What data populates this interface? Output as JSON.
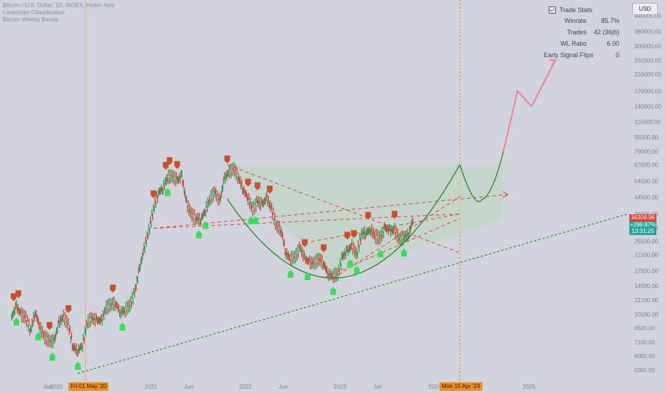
{
  "header": {
    "title": "Bitcoin / U.S. Dollar, 1D, INDEX, Heikin Ashi",
    "indicator1": "Lorentzian Classification",
    "indicator2": "Bitcoin Weekly Bands"
  },
  "currency_button": "USD",
  "trade_stats": {
    "title": "Trade Stats",
    "rows": [
      {
        "label": "Winrate",
        "value": "85.7%"
      },
      {
        "label": "Trades",
        "value": "42 (36|6)"
      },
      {
        "label": "WL Ratio",
        "value": "6.00"
      },
      {
        "label": "Early Signal Flips",
        "value": "0"
      }
    ]
  },
  "price_tags": {
    "last_price": "34309.96",
    "change": "+299.87%",
    "countdown": "13:31:25"
  },
  "x_highlights": {
    "left": "Fri 01 May '20",
    "right": "Mon 15 Apr '24"
  },
  "colors": {
    "background": "#d1d4dc",
    "bull_candle": "#2e9e5b",
    "bear_candle": "#e0413a",
    "sell_signal": "#c9502b",
    "buy_signal": "#3ddc5a",
    "curve": "#2d8a2d",
    "dashed_lines": "#e0413a",
    "projection": "#f08090",
    "support_line": "#3a9a2a",
    "highlight": "#f28c1b"
  },
  "chart_data": {
    "type": "line",
    "title": "Bitcoin / U.S. Dollar, 1D, INDEX, Heikin Ashi",
    "y_scale": "log",
    "ylim": [
      4500,
      480000
    ],
    "y_ticks": [
      5000,
      6000,
      7100,
      8500,
      10100,
      12100,
      14500,
      17500,
      21500,
      25500,
      30000,
      36000,
      44500,
      54500,
      67000,
      79000,
      95000,
      115000,
      140000,
      170000,
      210000,
      250000,
      300000,
      360000,
      440000
    ],
    "y_tick_labels": [
      "5000.00",
      "6000.00",
      "7100.00",
      "8500.00",
      "10100.00",
      "12100.00",
      "14500.00",
      "17500.00",
      "21500.00",
      "25500.00",
      "30000.00",
      "36000.00",
      "44500.00",
      "54500.00",
      "67000.00",
      "79000.00",
      "95000.00",
      "115000.00",
      "140000.00",
      "170000.00",
      "210000.00",
      "250000.00",
      "300000.00",
      "360000.00",
      "440000.00"
    ],
    "x_tick_labels": [
      "Jan",
      "2020",
      "Fri 01 May '20",
      "2021",
      "Jun",
      "2022",
      "Jun",
      "2023",
      "Jun",
      "2024",
      "Mon 15 Apr '24",
      "2025"
    ],
    "x_ticks_year": [
      2019.97,
      2020.0,
      2020.33,
      2021.0,
      2021.42,
      2022.0,
      2022.42,
      2023.0,
      2023.42,
      2024.0,
      2024.29,
      2025.0
    ],
    "price_series": {
      "name": "",
      "x": [
        2019.55,
        2019.6,
        2019.65,
        2019.7,
        2019.75,
        2019.8,
        2019.85,
        2019.9,
        2019.95,
        2020.0,
        2020.05,
        2020.1,
        2020.15,
        2020.2,
        2020.25,
        2020.3,
        2020.35,
        2020.4,
        2020.45,
        2020.5,
        2020.55,
        2020.6,
        2020.65,
        2020.7,
        2020.75,
        2020.8,
        2020.85,
        2020.9,
        2020.95,
        2021.0,
        2021.05,
        2021.1,
        2021.15,
        2021.2,
        2021.25,
        2021.3,
        2021.35,
        2021.4,
        2021.45,
        2021.5,
        2021.55,
        2021.6,
        2021.65,
        2021.7,
        2021.75,
        2021.8,
        2021.85,
        2021.9,
        2021.95,
        2022.0,
        2022.05,
        2022.1,
        2022.15,
        2022.2,
        2022.25,
        2022.3,
        2022.35,
        2022.4,
        2022.45,
        2022.5,
        2022.55,
        2022.6,
        2022.65,
        2022.7,
        2022.75,
        2022.8,
        2022.85,
        2022.9,
        2022.95,
        2023.0,
        2023.05,
        2023.1,
        2023.15,
        2023.2,
        2023.25,
        2023.3,
        2023.35,
        2023.4,
        2023.45,
        2023.5,
        2023.55,
        2023.6,
        2023.65,
        2023.7,
        2023.75,
        2023.8
      ],
      "y": [
        9800,
        11200,
        10100,
        9700,
        8300,
        10400,
        8600,
        7600,
        7200,
        7200,
        9100,
        9800,
        8900,
        6700,
        6400,
        6900,
        9200,
        9600,
        9400,
        9300,
        11000,
        11500,
        11600,
        10400,
        10700,
        11400,
        13200,
        17800,
        23000,
        29000,
        38000,
        47000,
        50000,
        57500,
        58000,
        55000,
        58000,
        41000,
        36000,
        34000,
        33500,
        38000,
        44000,
        47500,
        42000,
        56000,
        61000,
        64000,
        57000,
        49000,
        44000,
        38000,
        42000,
        40500,
        44000,
        38000,
        31000,
        29500,
        22000,
        20500,
        21000,
        23500,
        20500,
        19500,
        19300,
        20500,
        19200,
        16800,
        16500,
        16800,
        21000,
        22500,
        24000,
        21500,
        28000,
        28500,
        29500,
        27000,
        26500,
        30200,
        29200,
        29300,
        26000,
        26800,
        28000,
        34300
      ]
    },
    "signals": {
      "sell_dates": [
        2019.57,
        2019.62,
        2019.95,
        2020.15,
        2020.62,
        2021.05,
        2021.18,
        2021.22,
        2021.3,
        2021.83,
        2022.05,
        2022.15,
        2022.28,
        2022.65,
        2022.85,
        2023.1,
        2023.17,
        2023.32,
        2023.6
      ],
      "buy_dates": [
        2019.6,
        2019.83,
        2019.98,
        2020.25,
        2020.72,
        2021.2,
        2021.53,
        2021.6,
        2022.08,
        2022.13,
        2022.5,
        2022.68,
        2022.95,
        2023.13,
        2023.2,
        2023.45,
        2023.7
      ]
    },
    "projection": {
      "x": [
        2024.75,
        2024.9,
        2025.05,
        2025.3
      ],
      "y": [
        79000,
        170000,
        140000,
        250000
      ]
    },
    "legend": "none",
    "grid": false
  }
}
